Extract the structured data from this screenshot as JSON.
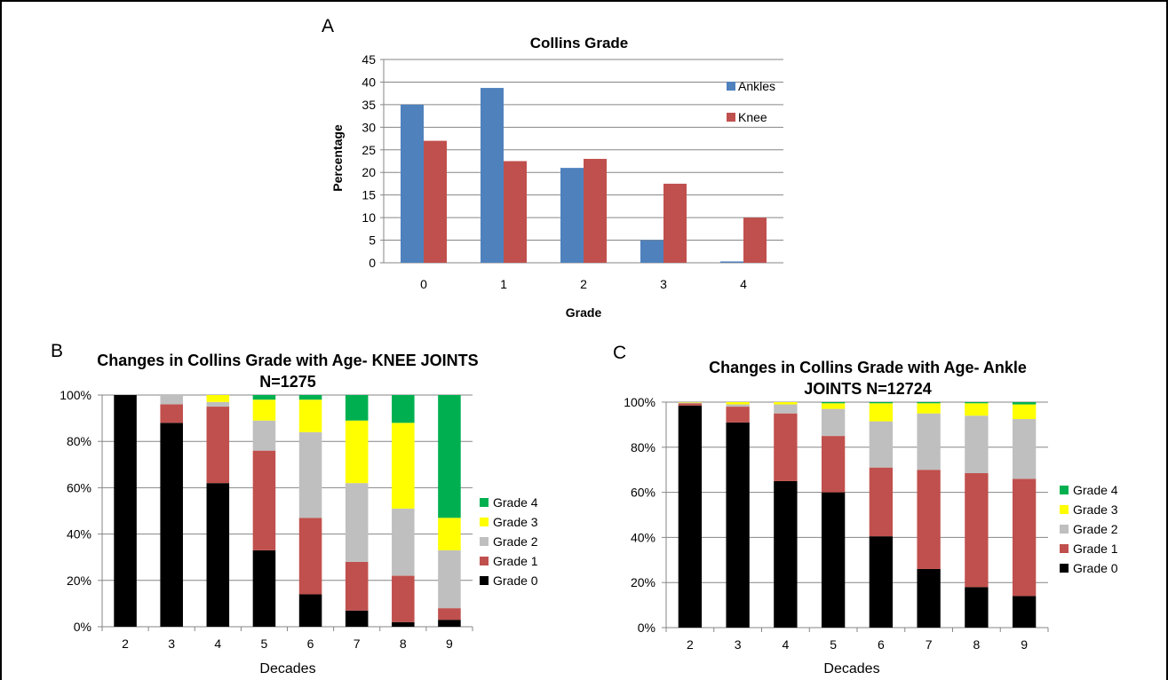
{
  "panels": {
    "a": {
      "letter": "A"
    },
    "b": {
      "letter": "B"
    },
    "c": {
      "letter": "C"
    }
  },
  "colors": {
    "ankles": "#4F81BD",
    "knee": "#C0504D",
    "grade0": "#000000",
    "grade1": "#C0504D",
    "grade2": "#BFBFBF",
    "grade3": "#FFFF00",
    "grade4": "#00B050",
    "gridline": "#868686"
  },
  "chart_data": [
    {
      "type": "bar",
      "title": "Collins Grade",
      "xlabel": "Grade",
      "ylabel": "Percentage",
      "categories": [
        "0",
        "1",
        "2",
        "3",
        "4"
      ],
      "y_ticks": [
        "0",
        "5",
        "10",
        "15",
        "20",
        "25",
        "30",
        "35",
        "40",
        "45"
      ],
      "ylim": [
        0,
        45
      ],
      "series": [
        {
          "name": "Ankles",
          "values": [
            35,
            38.7,
            21,
            5,
            0.3
          ]
        },
        {
          "name": "Knee",
          "values": [
            27,
            22.5,
            23,
            17.5,
            10
          ]
        }
      ],
      "legend_position": "right",
      "grid": true
    },
    {
      "type": "bar",
      "stacked": true,
      "title_lines": [
        "Changes in Collins Grade with Age- KNEE JOINTS",
        "N=1275"
      ],
      "xlabel": "Decades",
      "categories": [
        "2",
        "3",
        "4",
        "5",
        "6",
        "7",
        "8",
        "9"
      ],
      "y_ticks": [
        "0%",
        "20%",
        "40%",
        "60%",
        "80%",
        "100%"
      ],
      "ylim": [
        0,
        100
      ],
      "series": [
        {
          "name": "Grade 0",
          "values": [
            100,
            88,
            62,
            33,
            14,
            7,
            2,
            3
          ]
        },
        {
          "name": "Grade 1",
          "values": [
            0,
            8,
            33,
            43,
            33,
            21,
            20,
            5
          ]
        },
        {
          "name": "Grade 2",
          "values": [
            0,
            4,
            2,
            13,
            37,
            34,
            29,
            25
          ]
        },
        {
          "name": "Grade 3",
          "values": [
            0,
            0,
            3,
            9,
            14,
            27,
            37,
            14
          ]
        },
        {
          "name": "Grade 4",
          "values": [
            0,
            0,
            0,
            2,
            2,
            11,
            12,
            53
          ]
        }
      ],
      "legend_position": "right",
      "grid": true
    },
    {
      "type": "bar",
      "stacked": true,
      "title_lines": [
        "Changes in Collins Grade with Age- Ankle",
        "JOINTS N=12724"
      ],
      "xlabel": "Decades",
      "categories": [
        "2",
        "3",
        "4",
        "5",
        "6",
        "7",
        "8",
        "9"
      ],
      "y_ticks": [
        "0%",
        "20%",
        "40%",
        "60%",
        "80%",
        "100%"
      ],
      "ylim": [
        0,
        100
      ],
      "series": [
        {
          "name": "Grade 0",
          "values": [
            98.5,
            91,
            65,
            60,
            40.5,
            26,
            18,
            14
          ]
        },
        {
          "name": "Grade 1",
          "values": [
            1,
            7,
            30,
            25,
            30.5,
            44,
            50.5,
            52
          ]
        },
        {
          "name": "Grade 2",
          "values": [
            0.3,
            1,
            4,
            12,
            20.5,
            25,
            25.5,
            26.5
          ]
        },
        {
          "name": "Grade 3",
          "values": [
            0.2,
            1,
            1,
            2.5,
            8,
            4.5,
            5.5,
            6.5
          ]
        },
        {
          "name": "Grade 4",
          "values": [
            0,
            0,
            0,
            0.5,
            0.5,
            0.5,
            0.5,
            1
          ]
        }
      ],
      "legend_position": "right",
      "grid": true
    }
  ]
}
